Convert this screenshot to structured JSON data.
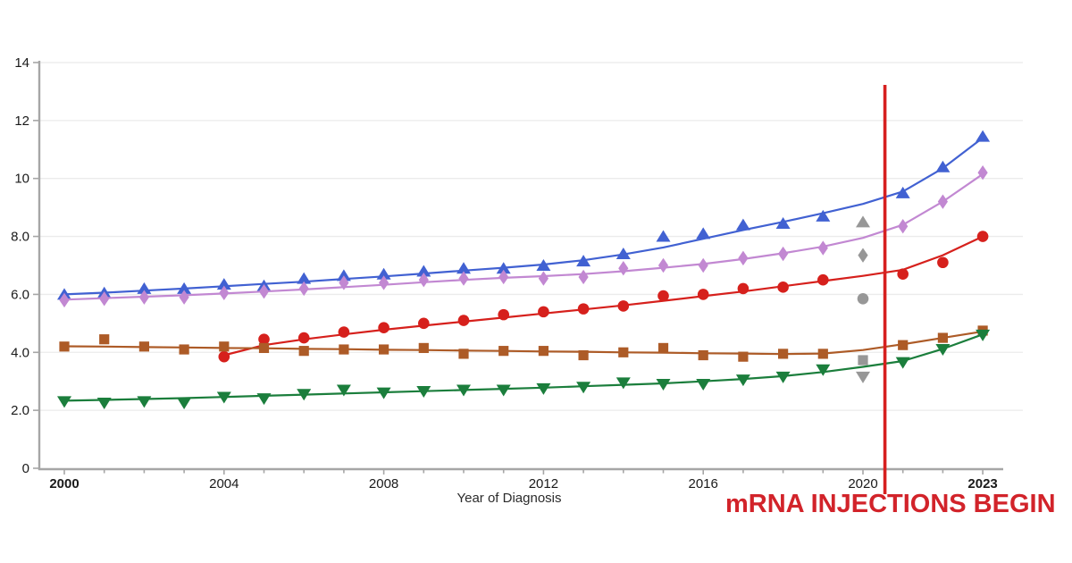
{
  "page": {
    "background": "#ffffff"
  },
  "chart_data": {
    "type": "line",
    "title": "",
    "xlabel": "Year of Diagnosis",
    "ylabel": "",
    "grid": "horizontal",
    "x": [
      2000,
      2001,
      2002,
      2003,
      2004,
      2005,
      2006,
      2007,
      2008,
      2009,
      2010,
      2011,
      2012,
      2013,
      2014,
      2015,
      2016,
      2017,
      2018,
      2019,
      2020,
      2021,
      2022,
      2023
    ],
    "x_axis": {
      "labeled_ticks": [
        2000,
        2004,
        2008,
        2012,
        2016,
        2020,
        2023
      ],
      "tick_labels": [
        "2000",
        "2004",
        "2008",
        "2012",
        "2016",
        "2020",
        "2023"
      ],
      "bold_tick_labels": [
        "2000",
        "2023"
      ],
      "minor_tick_every_year": true,
      "range": [
        2000,
        2023
      ]
    },
    "y_axis": {
      "tick_values": [
        0,
        2,
        4,
        6,
        8,
        10,
        12,
        14
      ],
      "tick_labels": [
        "0",
        "2.0",
        "4.0",
        "6.0",
        "8.0",
        "10",
        "12",
        "14"
      ],
      "range": [
        0,
        14
      ]
    },
    "series": [
      {
        "name": "series-blue-triangle-up",
        "marker": "triangle-up",
        "color": "#4161d2",
        "values": [
          6.0,
          6.05,
          6.2,
          6.2,
          6.35,
          6.3,
          6.55,
          6.65,
          6.7,
          6.8,
          6.9,
          6.9,
          7.0,
          7.15,
          7.4,
          8.0,
          8.1,
          8.4,
          8.45,
          8.7,
          null,
          9.5,
          10.4,
          11.45
        ],
        "trend": [
          6.0,
          6.06,
          6.13,
          6.2,
          6.28,
          6.36,
          6.44,
          6.53,
          6.62,
          6.72,
          6.82,
          6.92,
          7.03,
          7.18,
          7.38,
          7.62,
          7.92,
          8.22,
          8.5,
          8.8,
          9.12,
          9.55,
          10.35,
          11.4
        ]
      },
      {
        "name": "series-purple-diamond",
        "marker": "diamond",
        "color": "#c288d2",
        "values": [
          5.8,
          5.85,
          5.9,
          5.9,
          6.05,
          6.1,
          6.2,
          6.4,
          6.4,
          6.5,
          6.55,
          6.6,
          6.55,
          6.6,
          6.9,
          7.0,
          7.0,
          7.25,
          7.4,
          7.6,
          null,
          8.35,
          9.2,
          10.2
        ],
        "trend": [
          5.82,
          5.87,
          5.92,
          5.97,
          6.03,
          6.1,
          6.17,
          6.25,
          6.33,
          6.42,
          6.5,
          6.57,
          6.63,
          6.7,
          6.8,
          6.92,
          7.05,
          7.22,
          7.42,
          7.65,
          7.95,
          8.4,
          9.2,
          10.15
        ]
      },
      {
        "name": "series-red-circle",
        "marker": "circle",
        "color": "#d6201c",
        "values": [
          null,
          null,
          null,
          null,
          3.85,
          4.45,
          4.5,
          4.7,
          4.85,
          5.0,
          5.1,
          5.3,
          5.4,
          5.5,
          5.6,
          5.95,
          6.0,
          6.2,
          6.25,
          6.5,
          null,
          6.7,
          7.1,
          8.0
        ],
        "trend": [
          null,
          null,
          null,
          null,
          3.9,
          4.25,
          4.45,
          4.62,
          4.78,
          4.92,
          5.06,
          5.2,
          5.34,
          5.48,
          5.62,
          5.78,
          5.94,
          6.1,
          6.28,
          6.46,
          6.64,
          6.85,
          7.35,
          8.0
        ]
      },
      {
        "name": "series-brown-square",
        "marker": "square",
        "color": "#ad5b27",
        "values": [
          4.2,
          4.45,
          4.2,
          4.1,
          4.2,
          4.15,
          4.05,
          4.1,
          4.1,
          4.15,
          3.95,
          4.05,
          4.05,
          3.9,
          4.0,
          4.15,
          3.9,
          3.85,
          3.95,
          3.95,
          null,
          4.25,
          4.5,
          4.75
        ],
        "trend": [
          4.21,
          4.2,
          4.18,
          4.17,
          4.15,
          4.14,
          4.12,
          4.11,
          4.09,
          4.08,
          4.06,
          4.05,
          4.03,
          4.02,
          4.0,
          3.99,
          3.97,
          3.96,
          3.94,
          3.96,
          4.08,
          4.28,
          4.5,
          4.72
        ]
      },
      {
        "name": "series-green-triangle-down",
        "marker": "triangle-down",
        "color": "#1b7e3c",
        "values": [
          2.3,
          2.25,
          2.3,
          2.25,
          2.45,
          2.4,
          2.55,
          2.7,
          2.6,
          2.65,
          2.7,
          2.7,
          2.75,
          2.8,
          2.95,
          2.9,
          2.9,
          3.05,
          3.15,
          3.4,
          null,
          3.65,
          4.1,
          4.6
        ],
        "trend": [
          2.33,
          2.36,
          2.39,
          2.42,
          2.46,
          2.5,
          2.54,
          2.58,
          2.62,
          2.66,
          2.7,
          2.74,
          2.78,
          2.83,
          2.88,
          2.93,
          3.0,
          3.08,
          3.18,
          3.32,
          3.5,
          3.7,
          4.12,
          4.62
        ]
      }
    ],
    "excluded_year_points": {
      "year": 2020,
      "color": "#979797",
      "points": [
        {
          "marker": "triangle-up",
          "value": 8.5
        },
        {
          "marker": "diamond",
          "value": 7.35
        },
        {
          "marker": "circle",
          "value": 5.85
        },
        {
          "marker": "square",
          "value": 3.73
        },
        {
          "marker": "triangle-down",
          "value": 3.15
        }
      ]
    },
    "annotation": {
      "label": "mRNA INJECTIONS BEGIN",
      "color": "#d2232a",
      "line_year": 2020.55,
      "line_color": "#d6201f"
    },
    "colors": {
      "axis": "#a6a6a6",
      "gridline": "#ebebeb",
      "tick_text": "#1a1a1a"
    }
  }
}
